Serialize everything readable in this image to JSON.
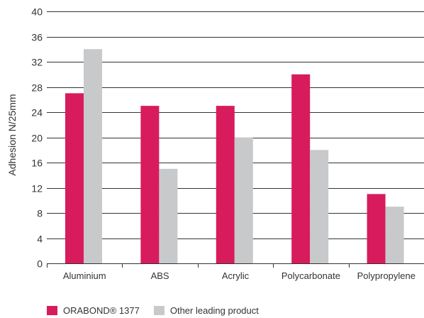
{
  "chart_data": {
    "type": "bar",
    "title": "",
    "xlabel": "",
    "ylabel": "Adhesion N/25mm",
    "ylim": [
      0,
      40
    ],
    "yticks": [
      0,
      4,
      8,
      12,
      16,
      20,
      24,
      28,
      32,
      36,
      40
    ],
    "grid": "horizontal",
    "legend_position": "bottom-left",
    "categories": [
      "Aluminium",
      "ABS",
      "Acrylic",
      "Polycarbonate",
      "Polypropylene"
    ],
    "series": [
      {
        "name": "ORABOND® 1377",
        "color": "#d81b5c",
        "values": [
          27,
          25,
          25,
          30,
          11
        ]
      },
      {
        "name": "Other leading product",
        "color": "#c8c9ca",
        "values": [
          34,
          15,
          20,
          18,
          9
        ]
      }
    ]
  },
  "legend": {
    "series_1": "ORABOND® 1377",
    "series_2": "Other leading product"
  }
}
